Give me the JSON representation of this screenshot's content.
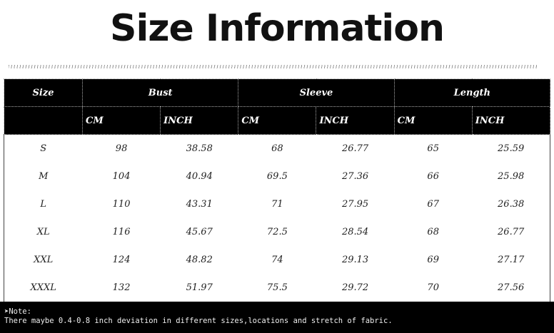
{
  "title": "Size Information",
  "table": {
    "headers": [
      "Size",
      "Bust",
      "Sleeve",
      "Length"
    ],
    "units": [
      "CM",
      "INCH",
      "CM",
      "INCH",
      "CM",
      "INCH"
    ],
    "rows": [
      [
        "S",
        "98",
        "38.58",
        "68",
        "26.77",
        "65",
        "25.59"
      ],
      [
        "M",
        "104",
        "40.94",
        "69.5",
        "27.36",
        "66",
        "25.98"
      ],
      [
        "L",
        "110",
        "43.31",
        "71",
        "27.95",
        "67",
        "26.38"
      ],
      [
        "XL",
        "116",
        "45.67",
        "72.5",
        "28.54",
        "68",
        "26.77"
      ],
      [
        "XXL",
        "124",
        "48.82",
        "74",
        "29.13",
        "69",
        "27.17"
      ],
      [
        "XXXL",
        "132",
        "51.97",
        "75.5",
        "29.72",
        "70",
        "27.56"
      ]
    ]
  },
  "note": {
    "label": "Note:",
    "icon": "arrow-bullet-icon",
    "text": "There maybe 0.4-0.8 inch deviation in different sizes,locations and stretch of fabric."
  }
}
